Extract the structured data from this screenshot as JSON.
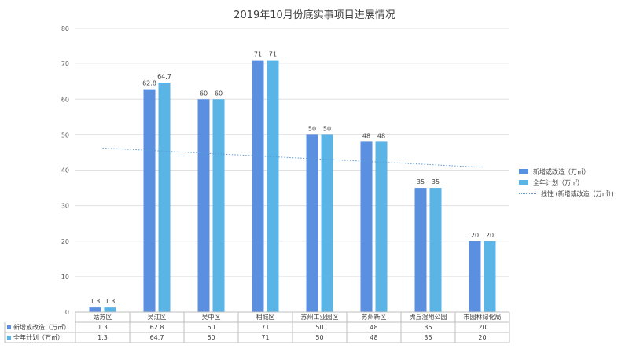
{
  "chart_data": {
    "type": "bar",
    "title": "2019年10月份底实事项目进展情况",
    "categories": [
      "姑苏区",
      "吴江区",
      "吴中区",
      "相城区",
      "苏州工业园区",
      "苏州新区",
      "虎丘湿地公园",
      "市园林绿化局"
    ],
    "series": [
      {
        "name": "新增或改造（万㎡）",
        "values": [
          1.3,
          62.8,
          60,
          71,
          50,
          48,
          35,
          20
        ],
        "color": "#5b8fe0"
      },
      {
        "name": "全年计划（万㎡）",
        "values": [
          1.3,
          64.7,
          60,
          71,
          50,
          48,
          35,
          20
        ],
        "color": "#5ab4e6"
      }
    ],
    "trendline": {
      "name": "线性 (新增或改造（万㎡）)",
      "color": "#5b9bd5"
    },
    "yticks": [
      "0",
      "10",
      "20",
      "30",
      "40",
      "50",
      "60",
      "70",
      "80"
    ],
    "ylim": [
      0,
      80
    ],
    "grid": true,
    "legend_position": "right",
    "data_table": {
      "rows": [
        {
          "label": "新增或改造（万㎡）",
          "cells": [
            "1.3",
            "62.8",
            "60",
            "71",
            "50",
            "48",
            "35",
            "20"
          ]
        },
        {
          "label": "全年计划（万㎡）",
          "cells": [
            "1.3",
            "64.7",
            "60",
            "71",
            "50",
            "48",
            "35",
            "20"
          ]
        }
      ]
    }
  }
}
